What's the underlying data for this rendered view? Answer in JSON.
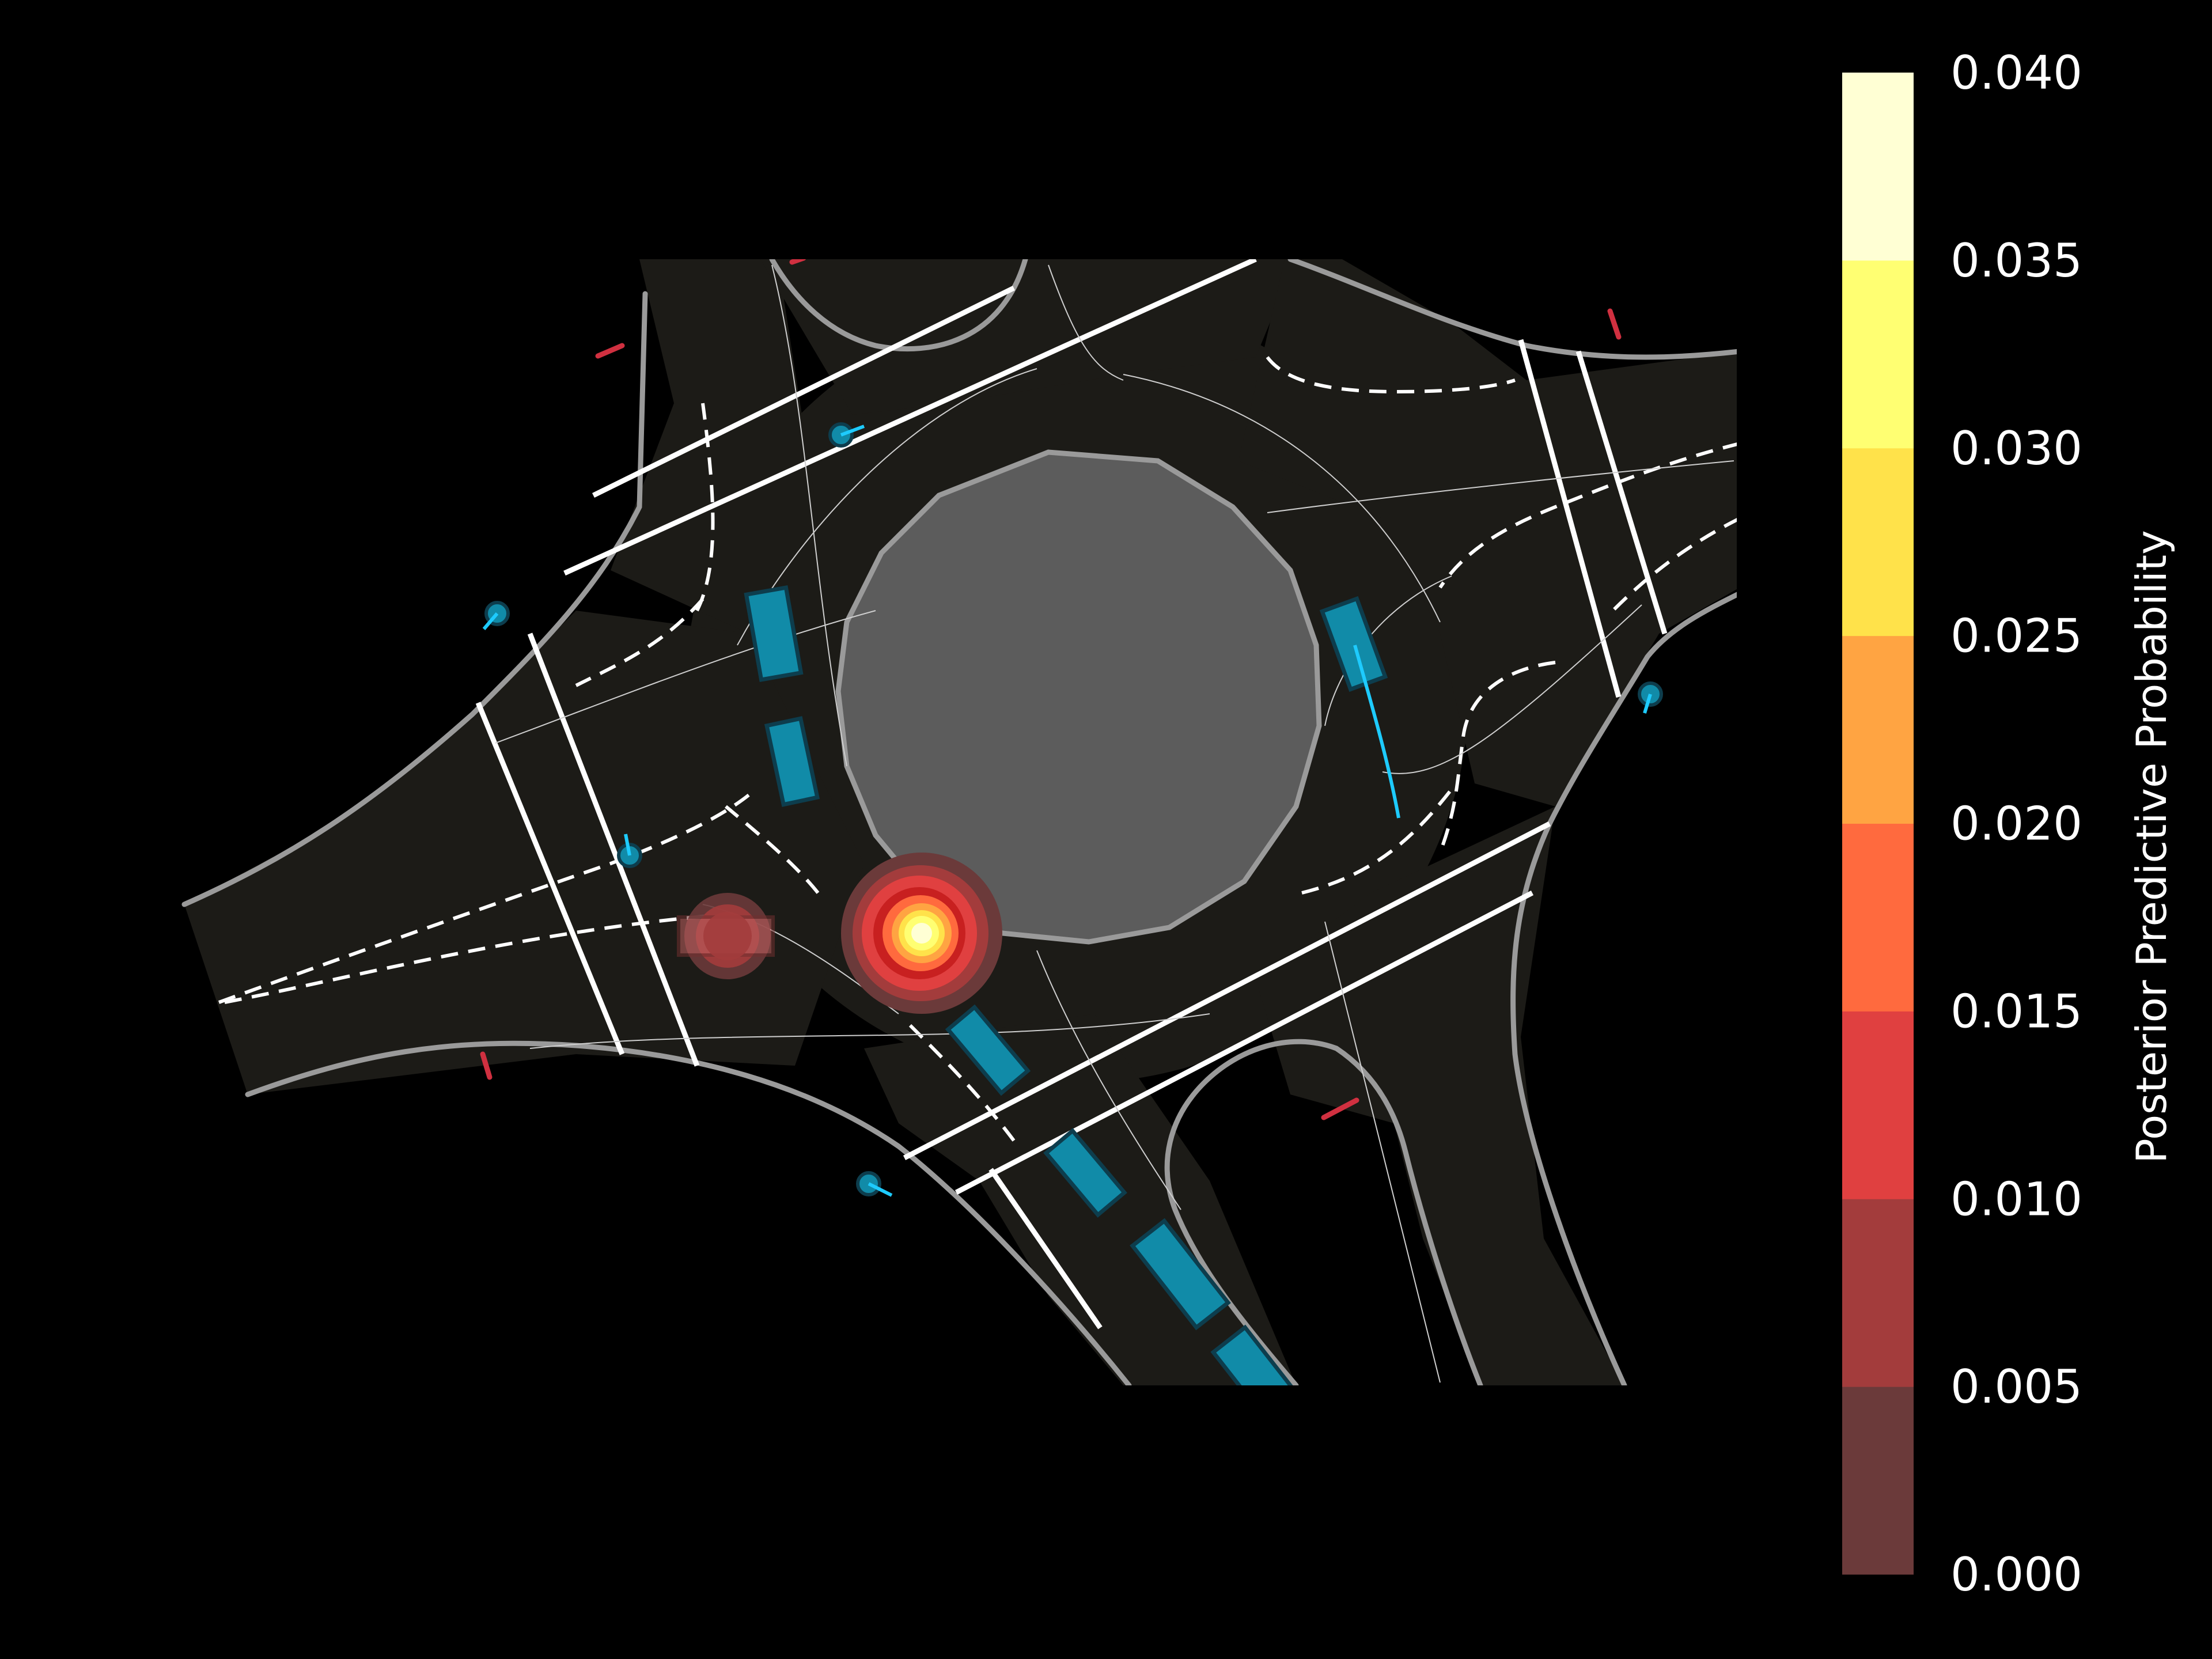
{
  "chart_data": {
    "type": "heatmap",
    "colorbar": {
      "label": "Posterior Predictive Probability",
      "ticks": [
        "0.000",
        "0.005",
        "0.010",
        "0.015",
        "0.020",
        "0.025",
        "0.030",
        "0.035",
        "0.040"
      ],
      "range": [
        0,
        0.04
      ],
      "levels": [
        {
          "from": 0.0,
          "to": 0.005,
          "color": "#6b3a3a"
        },
        {
          "from": 0.005,
          "to": 0.01,
          "color": "#a33c3c"
        },
        {
          "from": 0.01,
          "to": 0.015,
          "color": "#e04040"
        },
        {
          "from": 0.015,
          "to": 0.02,
          "color": "#ff6a3e"
        },
        {
          "from": 0.02,
          "to": 0.025,
          "color": "#ffa442"
        },
        {
          "from": 0.025,
          "to": 0.03,
          "color": "#ffe24a"
        },
        {
          "from": 0.03,
          "to": 0.035,
          "color": "#ffff72"
        },
        {
          "from": 0.035,
          "to": 0.04,
          "color": "#ffffd4"
        }
      ]
    },
    "colors": {
      "background": "#000000",
      "road": "#1c1b17",
      "island": "#5c5c5c",
      "edge": "#9a9a9a",
      "vehicle": "#118ba8",
      "pedestrian": "#118ba8",
      "trajectory": "#1ecbff",
      "ego": "#c06060",
      "traffic_signal": "#d03040"
    },
    "scene": {
      "vehicles": 8,
      "pedestrians": 6,
      "ego_vehicle": 1,
      "traffic_signals": 6
    }
  }
}
